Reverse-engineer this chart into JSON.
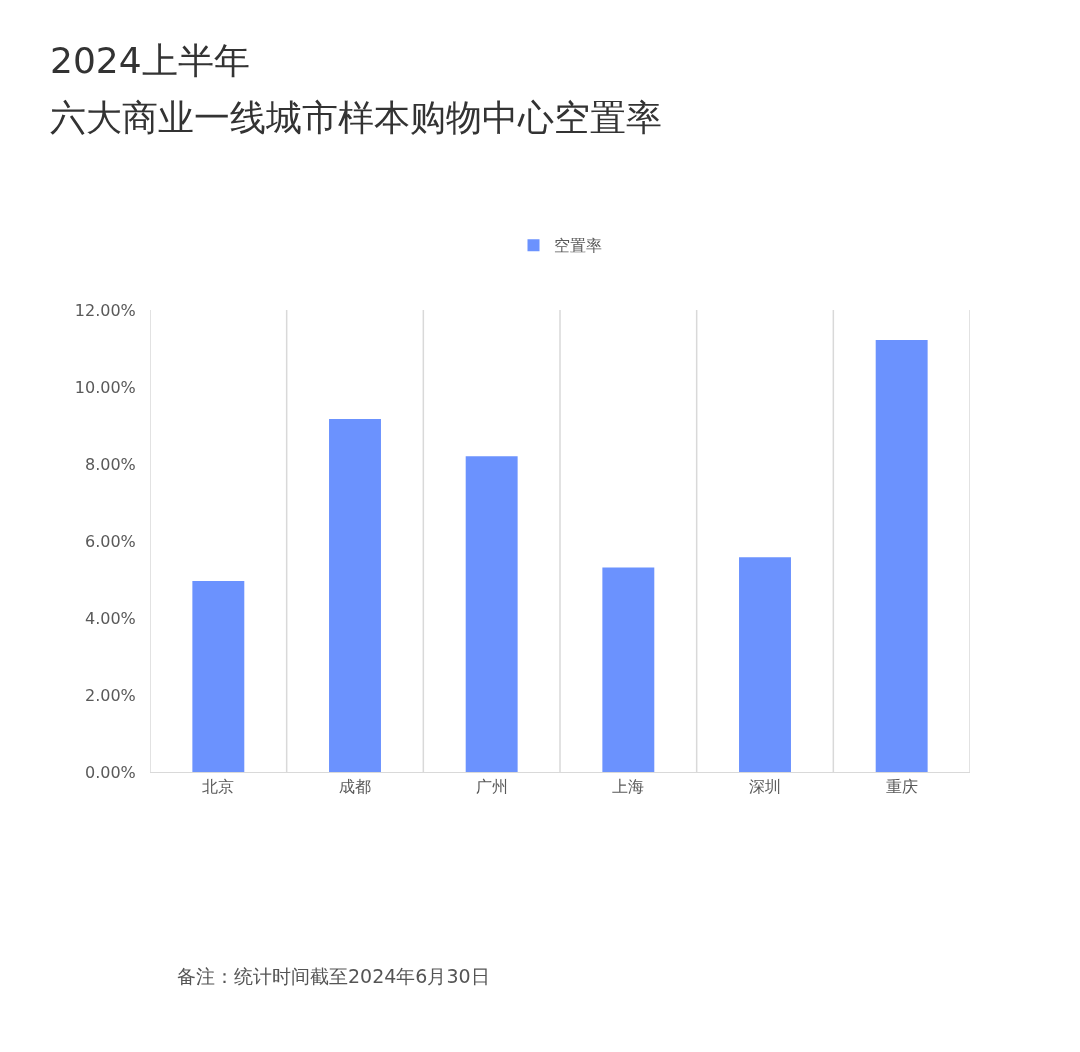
{
  "chart_data": {
    "type": "bar",
    "title": "2024上半年",
    "subtitle": "六大商业一线城市样本购物中心空置率",
    "categories": [
      "北京",
      "成都",
      "广州",
      "上海",
      "深圳",
      "重庆"
    ],
    "series": [
      {
        "name": "空置率",
        "color": "#6b92fe",
        "values": [
          4.96,
          9.17,
          8.2,
          5.31,
          5.58,
          11.22
        ]
      }
    ],
    "ylim": [
      0,
      12
    ],
    "yticks": [
      {
        "value": 0,
        "label": "0.00%"
      },
      {
        "value": 2,
        "label": "2.00%"
      },
      {
        "value": 4,
        "label": "4.00%"
      },
      {
        "value": 6,
        "label": "6.00%"
      },
      {
        "value": 8,
        "label": "8.00%"
      },
      {
        "value": 10,
        "label": "10.00%"
      },
      {
        "value": 12,
        "label": "12.00%"
      }
    ],
    "grid": "x",
    "legend": "top",
    "annotations": [
      "备注：统计时间截至2024年6月30日"
    ]
  }
}
